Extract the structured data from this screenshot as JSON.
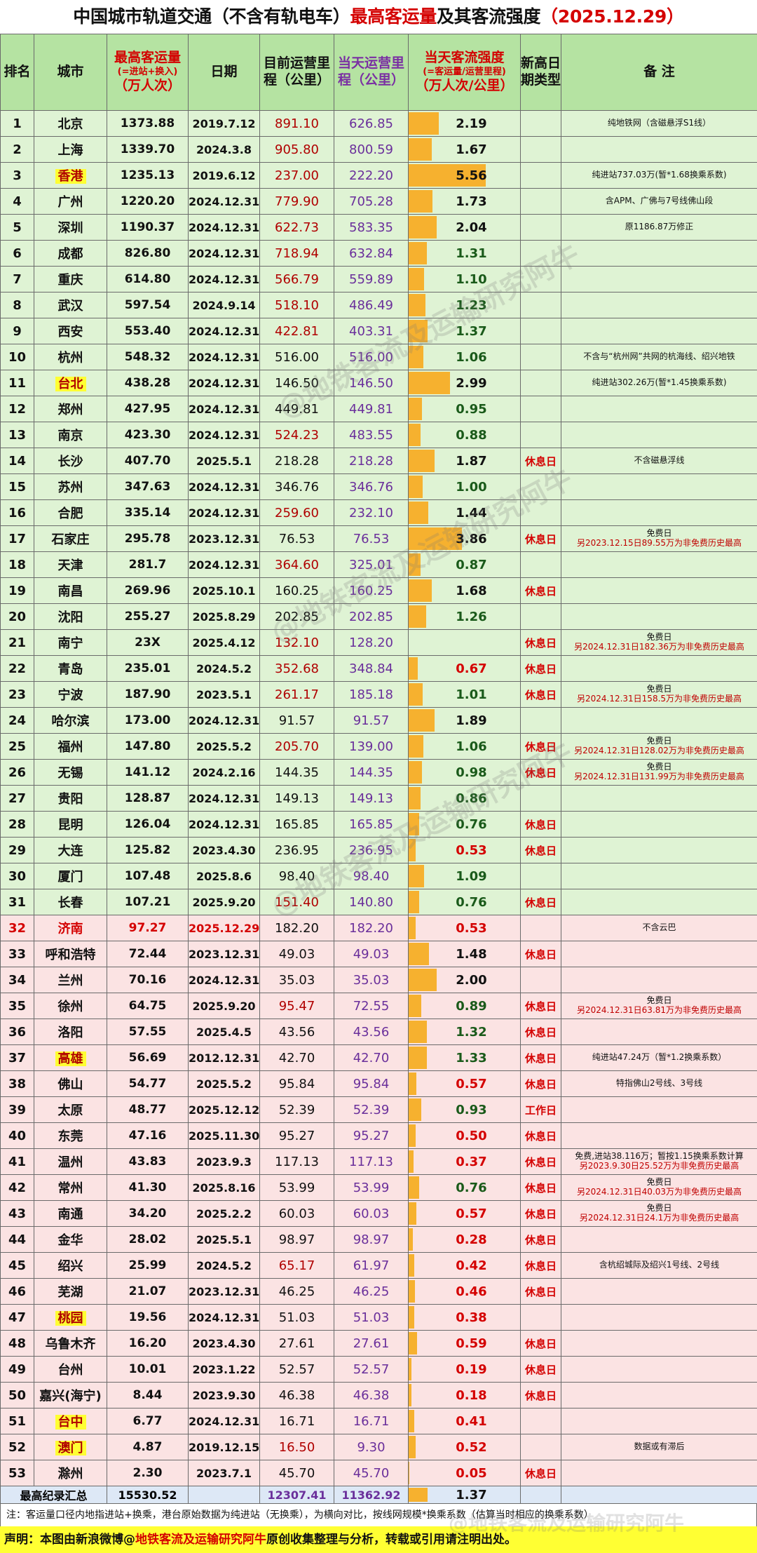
{
  "title": {
    "part1": "中国城市轨道交通（不含有轨电车）",
    "part2": "最高客运量",
    "part3": "及其客流强度",
    "date": "（2025.12.29）"
  },
  "headers": {
    "rank": "排名",
    "city": "城市",
    "peak": "最高客运量",
    "peak_sub": "(=进站+换入)",
    "peak_unit": "（万人次）",
    "date": "日期",
    "len": "目前运营里程（公里）",
    "day_len": "当天运营里程（公里）",
    "intensity": "当天客流强度",
    "intensity_sub": "(=客运量/运营里程)",
    "intensity_unit": "（万人次/公里）",
    "type": "新高日期类型",
    "note": "备 注"
  },
  "rows": [
    {
      "rank": "1",
      "city": "北京",
      "peak": "1373.88",
      "date": "2019.7.12",
      "len": "891.10",
      "day_len": "626.85",
      "intensity": "2.19",
      "type": "",
      "note": "纯地铁网（含磁悬浮S1线）",
      "note2": "",
      "style": "green",
      "hk": false,
      "len_red": true
    },
    {
      "rank": "2",
      "city": "上海",
      "peak": "1339.70",
      "date": "2024.3.8",
      "len": "905.80",
      "day_len": "800.59",
      "intensity": "1.67",
      "type": "",
      "note": "",
      "note2": "",
      "style": "green",
      "hk": false,
      "len_red": true
    },
    {
      "rank": "3",
      "city": "香港",
      "peak": "1235.13",
      "date": "2019.6.12",
      "len": "237.00",
      "day_len": "222.20",
      "intensity": "5.56",
      "type": "",
      "note": "纯进站737.03万(暂*1.68换乘系数)",
      "note2": "",
      "style": "green",
      "hk": true,
      "len_red": true
    },
    {
      "rank": "4",
      "city": "广州",
      "peak": "1220.20",
      "date": "2024.12.31",
      "len": "779.90",
      "day_len": "705.28",
      "intensity": "1.73",
      "type": "",
      "note": "含APM、广佛与7号线佛山段",
      "note2": "",
      "style": "green",
      "hk": false,
      "len_red": true
    },
    {
      "rank": "5",
      "city": "深圳",
      "peak": "1190.37",
      "date": "2024.12.31",
      "len": "622.73",
      "day_len": "583.35",
      "intensity": "2.04",
      "type": "",
      "note": "原1186.87万修正",
      "note2": "",
      "style": "green",
      "hk": false,
      "len_red": true
    },
    {
      "rank": "6",
      "city": "成都",
      "peak": "826.80",
      "date": "2024.12.31",
      "len": "718.94",
      "day_len": "632.84",
      "intensity": "1.31",
      "type": "",
      "note": "",
      "note2": "",
      "style": "green",
      "hk": false,
      "len_red": true
    },
    {
      "rank": "7",
      "city": "重庆",
      "peak": "614.80",
      "date": "2024.12.31",
      "len": "566.79",
      "day_len": "559.89",
      "intensity": "1.10",
      "type": "",
      "note": "",
      "note2": "",
      "style": "green",
      "hk": false,
      "len_red": true
    },
    {
      "rank": "8",
      "city": "武汉",
      "peak": "597.54",
      "date": "2024.9.14",
      "len": "518.10",
      "day_len": "486.49",
      "intensity": "1.23",
      "type": "",
      "note": "",
      "note2": "",
      "style": "green",
      "hk": false,
      "len_red": true
    },
    {
      "rank": "9",
      "city": "西安",
      "peak": "553.40",
      "date": "2024.12.31",
      "len": "422.81",
      "day_len": "403.31",
      "intensity": "1.37",
      "type": "",
      "note": "",
      "note2": "",
      "style": "green",
      "hk": false,
      "len_red": true
    },
    {
      "rank": "10",
      "city": "杭州",
      "peak": "548.32",
      "date": "2024.12.31",
      "len": "516.00",
      "day_len": "516.00",
      "intensity": "1.06",
      "type": "",
      "note": "不含与“杭州网”共网的杭海线、绍兴地铁",
      "note2": "",
      "style": "green",
      "hk": false,
      "len_red": false
    },
    {
      "rank": "11",
      "city": "台北",
      "peak": "438.28",
      "date": "2024.12.31",
      "len": "146.50",
      "day_len": "146.50",
      "intensity": "2.99",
      "type": "",
      "note": "纯进站302.26万(暂*1.45换乘系数)",
      "note2": "",
      "style": "green",
      "hk": true,
      "len_red": false
    },
    {
      "rank": "12",
      "city": "郑州",
      "peak": "427.95",
      "date": "2024.12.31",
      "len": "449.81",
      "day_len": "449.81",
      "intensity": "0.95",
      "type": "",
      "note": "",
      "note2": "",
      "style": "green",
      "hk": false,
      "len_red": false
    },
    {
      "rank": "13",
      "city": "南京",
      "peak": "423.30",
      "date": "2024.12.31",
      "len": "524.23",
      "day_len": "483.55",
      "intensity": "0.88",
      "type": "",
      "note": "",
      "note2": "",
      "style": "green",
      "hk": false,
      "len_red": true
    },
    {
      "rank": "14",
      "city": "长沙",
      "peak": "407.70",
      "date": "2025.5.1",
      "len": "218.28",
      "day_len": "218.28",
      "intensity": "1.87",
      "type": "休息日",
      "note": "不含磁悬浮线",
      "note2": "",
      "style": "green",
      "hk": false,
      "len_red": false
    },
    {
      "rank": "15",
      "city": "苏州",
      "peak": "347.63",
      "date": "2024.12.31",
      "len": "346.76",
      "day_len": "346.76",
      "intensity": "1.00",
      "type": "",
      "note": "",
      "note2": "",
      "style": "green",
      "hk": false,
      "len_red": false
    },
    {
      "rank": "16",
      "city": "合肥",
      "peak": "335.14",
      "date": "2024.12.31",
      "len": "259.60",
      "day_len": "232.10",
      "intensity": "1.44",
      "type": "",
      "note": "",
      "note2": "",
      "style": "green",
      "hk": false,
      "len_red": true
    },
    {
      "rank": "17",
      "city": "石家庄",
      "peak": "295.78",
      "date": "2023.12.31",
      "len": "76.53",
      "day_len": "76.53",
      "intensity": "3.86",
      "type": "休息日",
      "note": "免费日",
      "note2": "另2023.12.15日89.55万为非免费历史最高",
      "style": "green",
      "hk": false,
      "len_red": false
    },
    {
      "rank": "18",
      "city": "天津",
      "peak": "281.7",
      "date": "2024.12.31",
      "len": "364.60",
      "day_len": "325.01",
      "intensity": "0.87",
      "type": "",
      "note": "",
      "note2": "",
      "style": "green",
      "hk": false,
      "len_red": true
    },
    {
      "rank": "19",
      "city": "南昌",
      "peak": "269.96",
      "date": "2025.10.1",
      "len": "160.25",
      "day_len": "160.25",
      "intensity": "1.68",
      "type": "休息日",
      "note": "",
      "note2": "",
      "style": "green",
      "hk": false,
      "len_red": false
    },
    {
      "rank": "20",
      "city": "沈阳",
      "peak": "255.27",
      "date": "2025.8.29",
      "len": "202.85",
      "day_len": "202.85",
      "intensity": "1.26",
      "type": "",
      "note": "",
      "note2": "",
      "style": "green",
      "hk": false,
      "len_red": false
    },
    {
      "rank": "21",
      "city": "南宁",
      "peak": "23X",
      "date": "2025.4.12",
      "len": "132.10",
      "day_len": "128.20",
      "intensity": "",
      "type": "休息日",
      "note": "免费日",
      "note2": "另2024.12.31日182.36万为非免费历史最高",
      "style": "green",
      "hk": false,
      "len_red": true
    },
    {
      "rank": "22",
      "city": "青岛",
      "peak": "235.01",
      "date": "2024.5.2",
      "len": "352.68",
      "day_len": "348.84",
      "intensity": "0.67",
      "type": "休息日",
      "note": "",
      "note2": "",
      "style": "green",
      "hk": false,
      "len_red": true
    },
    {
      "rank": "23",
      "city": "宁波",
      "peak": "187.90",
      "date": "2023.5.1",
      "len": "261.17",
      "day_len": "185.18",
      "intensity": "1.01",
      "type": "休息日",
      "note": "免费日",
      "note2": "另2024.12.31日158.5万为非免费历史最高",
      "style": "green",
      "hk": false,
      "len_red": true
    },
    {
      "rank": "24",
      "city": "哈尔滨",
      "peak": "173.00",
      "date": "2024.12.31",
      "len": "91.57",
      "day_len": "91.57",
      "intensity": "1.89",
      "type": "",
      "note": "",
      "note2": "",
      "style": "green",
      "hk": false,
      "len_red": false
    },
    {
      "rank": "25",
      "city": "福州",
      "peak": "147.80",
      "date": "2025.5.2",
      "len": "205.70",
      "day_len": "139.00",
      "intensity": "1.06",
      "type": "休息日",
      "note": "免费日",
      "note2": "另2024.12.31日128.02万为非免费历史最高",
      "style": "green",
      "hk": false,
      "len_red": true
    },
    {
      "rank": "26",
      "city": "无锡",
      "peak": "141.12",
      "date": "2024.2.16",
      "len": "144.35",
      "day_len": "144.35",
      "intensity": "0.98",
      "type": "休息日",
      "note": "免费日",
      "note2": "另2024.12.31日131.99万为非免费历史最高",
      "style": "green",
      "hk": false,
      "len_red": false
    },
    {
      "rank": "27",
      "city": "贵阳",
      "peak": "128.87",
      "date": "2024.12.31",
      "len": "149.13",
      "day_len": "149.13",
      "intensity": "0.86",
      "type": "",
      "note": "",
      "note2": "",
      "style": "green",
      "hk": false,
      "len_red": false
    },
    {
      "rank": "28",
      "city": "昆明",
      "peak": "126.04",
      "date": "2024.12.31",
      "len": "165.85",
      "day_len": "165.85",
      "intensity": "0.76",
      "type": "休息日",
      "note": "",
      "note2": "",
      "style": "green",
      "hk": false,
      "len_red": false
    },
    {
      "rank": "29",
      "city": "大连",
      "peak": "125.82",
      "date": "2023.4.30",
      "len": "236.95",
      "day_len": "236.95",
      "intensity": "0.53",
      "type": "休息日",
      "note": "",
      "note2": "",
      "style": "green",
      "hk": false,
      "len_red": false
    },
    {
      "rank": "30",
      "city": "厦门",
      "peak": "107.48",
      "date": "2025.8.6",
      "len": "98.40",
      "day_len": "98.40",
      "intensity": "1.09",
      "type": "",
      "note": "",
      "note2": "",
      "style": "green",
      "hk": false,
      "len_red": false
    },
    {
      "rank": "31",
      "city": "长春",
      "peak": "107.21",
      "date": "2025.9.20",
      "len": "151.40",
      "day_len": "140.80",
      "intensity": "0.76",
      "type": "休息日",
      "note": "",
      "note2": "",
      "style": "green",
      "hk": false,
      "len_red": true
    },
    {
      "rank": "32",
      "city": "济南",
      "peak": "97.27",
      "date": "2025.12.29",
      "len": "182.20",
      "day_len": "182.20",
      "intensity": "0.53",
      "type": "",
      "note": "不含云巴",
      "note2": "",
      "style": "pink red-row",
      "hk": false,
      "len_red": false
    },
    {
      "rank": "33",
      "city": "呼和浩特",
      "peak": "72.44",
      "date": "2023.12.31",
      "len": "49.03",
      "day_len": "49.03",
      "intensity": "1.48",
      "type": "休息日",
      "note": "",
      "note2": "",
      "style": "pink",
      "hk": false,
      "len_red": false
    },
    {
      "rank": "34",
      "city": "兰州",
      "peak": "70.16",
      "date": "2024.12.31",
      "len": "35.03",
      "day_len": "35.03",
      "intensity": "2.00",
      "type": "",
      "note": "",
      "note2": "",
      "style": "pink",
      "hk": false,
      "len_red": false
    },
    {
      "rank": "35",
      "city": "徐州",
      "peak": "64.75",
      "date": "2025.9.20",
      "len": "95.47",
      "day_len": "72.55",
      "intensity": "0.89",
      "type": "休息日",
      "note": "免费日",
      "note2": "另2024.12.31日63.81万为非免费历史最高",
      "style": "pink",
      "hk": false,
      "len_red": true
    },
    {
      "rank": "36",
      "city": "洛阳",
      "peak": "57.55",
      "date": "2025.4.5",
      "len": "43.56",
      "day_len": "43.56",
      "intensity": "1.32",
      "type": "休息日",
      "note": "",
      "note2": "",
      "style": "pink",
      "hk": false,
      "len_red": false
    },
    {
      "rank": "37",
      "city": "高雄",
      "peak": "56.69",
      "date": "2012.12.31",
      "len": "42.70",
      "day_len": "42.70",
      "intensity": "1.33",
      "type": "休息日",
      "note": "纯进站47.24万（暂*1.2换乘系数）",
      "note2": "",
      "style": "pink",
      "hk": true,
      "len_red": false
    },
    {
      "rank": "38",
      "city": "佛山",
      "peak": "54.77",
      "date": "2025.5.2",
      "len": "95.84",
      "day_len": "95.84",
      "intensity": "0.57",
      "type": "休息日",
      "note": "特指佛山2号线、3号线",
      "note2": "",
      "style": "pink",
      "hk": false,
      "len_red": false
    },
    {
      "rank": "39",
      "city": "太原",
      "peak": "48.77",
      "date": "2025.12.12",
      "len": "52.39",
      "day_len": "52.39",
      "intensity": "0.93",
      "type": "工作日",
      "note": "",
      "note2": "",
      "style": "pink",
      "hk": false,
      "len_red": false
    },
    {
      "rank": "40",
      "city": "东莞",
      "peak": "47.16",
      "date": "2025.11.30",
      "len": "95.27",
      "day_len": "95.27",
      "intensity": "0.50",
      "type": "休息日",
      "note": "",
      "note2": "",
      "style": "pink",
      "hk": false,
      "len_red": false
    },
    {
      "rank": "41",
      "city": "温州",
      "peak": "43.83",
      "date": "2023.9.3",
      "len": "117.13",
      "day_len": "117.13",
      "intensity": "0.37",
      "type": "休息日",
      "note": "免费,进站38.116万；暂按1.15换乘系数计算",
      "note2": "另2023.9.30日25.52万为非免费历史最高",
      "style": "pink",
      "hk": false,
      "len_red": false
    },
    {
      "rank": "42",
      "city": "常州",
      "peak": "41.30",
      "date": "2025.8.16",
      "len": "53.99",
      "day_len": "53.99",
      "intensity": "0.76",
      "type": "休息日",
      "note": "免费日",
      "note2": "另2024.12.31日40.03万为非免费历史最高",
      "style": "pink",
      "hk": false,
      "len_red": false
    },
    {
      "rank": "43",
      "city": "南通",
      "peak": "34.20",
      "date": "2025.2.2",
      "len": "60.03",
      "day_len": "60.03",
      "intensity": "0.57",
      "type": "休息日",
      "note": "免费日",
      "note2": "另2024.12.31日24.1万为非免费历史最高",
      "style": "pink",
      "hk": false,
      "len_red": false
    },
    {
      "rank": "44",
      "city": "金华",
      "peak": "28.02",
      "date": "2025.5.1",
      "len": "98.97",
      "day_len": "98.97",
      "intensity": "0.28",
      "type": "休息日",
      "note": "",
      "note2": "",
      "style": "pink",
      "hk": false,
      "len_red": false
    },
    {
      "rank": "45",
      "city": "绍兴",
      "peak": "25.99",
      "date": "2024.5.2",
      "len": "65.17",
      "day_len": "61.97",
      "intensity": "0.42",
      "type": "休息日",
      "note": "含杭绍城际及绍兴1号线、2号线",
      "note2": "",
      "style": "pink",
      "hk": false,
      "len_red": true
    },
    {
      "rank": "46",
      "city": "芜湖",
      "peak": "21.07",
      "date": "2023.12.31",
      "len": "46.25",
      "day_len": "46.25",
      "intensity": "0.46",
      "type": "休息日",
      "note": "",
      "note2": "",
      "style": "pink",
      "hk": false,
      "len_red": false
    },
    {
      "rank": "47",
      "city": "桃园",
      "peak": "19.56",
      "date": "2024.12.31",
      "len": "51.03",
      "day_len": "51.03",
      "intensity": "0.38",
      "type": "",
      "note": "",
      "note2": "",
      "style": "pink",
      "hk": true,
      "len_red": false
    },
    {
      "rank": "48",
      "city": "乌鲁木齐",
      "peak": "16.20",
      "date": "2023.4.30",
      "len": "27.61",
      "day_len": "27.61",
      "intensity": "0.59",
      "type": "休息日",
      "note": "",
      "note2": "",
      "style": "pink",
      "hk": false,
      "len_red": false
    },
    {
      "rank": "49",
      "city": "台州",
      "peak": "10.01",
      "date": "2023.1.22",
      "len": "52.57",
      "day_len": "52.57",
      "intensity": "0.19",
      "type": "休息日",
      "note": "",
      "note2": "",
      "style": "pink",
      "hk": false,
      "len_red": false
    },
    {
      "rank": "50",
      "city": "嘉兴(海宁)",
      "peak": "8.44",
      "date": "2023.9.30",
      "len": "46.38",
      "day_len": "46.38",
      "intensity": "0.18",
      "type": "休息日",
      "note": "",
      "note2": "",
      "style": "pink",
      "hk": false,
      "len_red": false
    },
    {
      "rank": "51",
      "city": "台中",
      "peak": "6.77",
      "date": "2024.12.31",
      "len": "16.71",
      "day_len": "16.71",
      "intensity": "0.41",
      "type": "",
      "note": "",
      "note2": "",
      "style": "pink",
      "hk": true,
      "len_red": false
    },
    {
      "rank": "52",
      "city": "澳门",
      "peak": "4.87",
      "date": "2019.12.15",
      "len": "16.50",
      "day_len": "9.30",
      "intensity": "0.52",
      "type": "",
      "note": "数据或有滞后",
      "note2": "",
      "style": "pink",
      "hk": true,
      "len_red": true
    },
    {
      "rank": "53",
      "city": "滁州",
      "peak": "2.30",
      "date": "2023.7.1",
      "len": "45.70",
      "day_len": "45.70",
      "intensity": "0.05",
      "type": "休息日",
      "note": "",
      "note2": "",
      "style": "pink",
      "hk": false,
      "len_red": false
    }
  ],
  "summary": {
    "label": "最高纪录汇总",
    "peak": "15530.52",
    "len": "12307.41",
    "day_len": "11362.92",
    "intensity": "1.37"
  },
  "footnote": "注：客运量口径内地指进站+换乘，港台原始数据为纯进站（无换乘），为横向对比，按线网规模*换乘系数（估算当时相应的换乘系数）",
  "declaration": {
    "pre": "声明：本图由新浪微博@",
    "author": "地铁客流及运输研究阿牛",
    "post": "原创收集整理与分析，转载或引用请注明出处。"
  },
  "watermarks": [
    "@地铁客流及运输研究阿牛",
    "@地铁客流及运输研究阿牛",
    "@地铁客流及运输研究阿牛",
    "@地铁客流及运输研究阿牛"
  ]
}
